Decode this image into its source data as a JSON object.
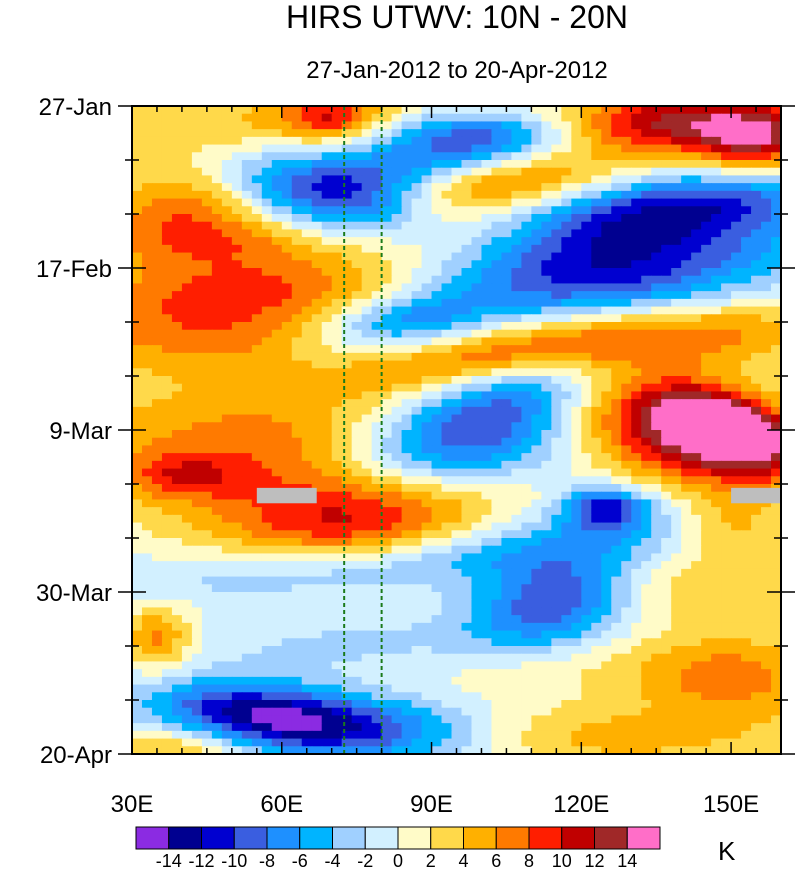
{
  "chart_data": {
    "type": "heatmap",
    "title": "HIRS UTWV: 10N - 20N",
    "subtitle": "27-Jan-2012 to 20-Apr-2012",
    "x_axis": {
      "range": [
        30,
        160
      ],
      "ticks": [
        30,
        60,
        90,
        120,
        150
      ],
      "tick_labels": [
        "30E",
        "60E",
        "90E",
        "120E",
        "150E"
      ]
    },
    "y_axis": {
      "range_days": [
        0,
        84
      ],
      "direction": "time increases downward",
      "ticks": [
        0,
        21,
        42,
        63,
        84
      ],
      "tick_labels": [
        "27-Jan",
        "17-Feb",
        "9-Mar",
        "30-Mar",
        "20-Apr"
      ]
    },
    "reference_lines_lon": [
      72.5,
      80
    ],
    "colorbar": {
      "unit": "K",
      "levels": [
        -14,
        -12,
        -10,
        -8,
        -6,
        -4,
        -2,
        0,
        2,
        4,
        6,
        8,
        10,
        12,
        14
      ],
      "level_labels": [
        "-14",
        "-12",
        "-10",
        "-8",
        "-6",
        "-4",
        "-2",
        "0",
        "2",
        "4",
        "6",
        "8",
        "10",
        "12",
        "14"
      ],
      "colors": [
        "#8b2be2",
        "#000090",
        "#0000d0",
        "#3a5ee0",
        "#1e90ff",
        "#00b4ff",
        "#a0d0ff",
        "#d2f0ff",
        "#fffbc8",
        "#ffd94a",
        "#ffb000",
        "#ff7a00",
        "#ff1e00",
        "#c00000",
        "#a02828",
        "#ff6ec8"
      ]
    },
    "missing_color": "#bebebe",
    "missing_boxes": [
      {
        "lon": [
          55,
          67
        ],
        "day": [
          49.5,
          51.5
        ]
      },
      {
        "lon": [
          150,
          160
        ],
        "day": [
          49.5,
          51.5
        ]
      }
    ],
    "anomaly_features": [
      {
        "lon": 60,
        "day": 2,
        "value": 4,
        "sx": 60,
        "sy": 3,
        "theta": 0
      },
      {
        "lon": 70,
        "day": 1.5,
        "value": 8,
        "sx": 7,
        "sy": 2,
        "theta": 0
      },
      {
        "lon": 100,
        "day": 5,
        "value": -9,
        "sx": 15,
        "sy": 3,
        "theta": -0.18
      },
      {
        "lon": 92,
        "day": 3,
        "value": -5,
        "sx": 15,
        "sy": 2,
        "theta": 0
      },
      {
        "lon": 140,
        "day": 2,
        "value": 11,
        "sx": 18,
        "sy": 3,
        "theta": 0
      },
      {
        "lon": 155,
        "day": 5,
        "value": 9,
        "sx": 8,
        "sy": 3,
        "theta": 0
      },
      {
        "lon": 100,
        "day": 10,
        "value": 7,
        "sx": 18,
        "sy": 2.5,
        "theta": -0.1
      },
      {
        "lon": 76,
        "day": 12,
        "value": -11,
        "sx": 12,
        "sy": 4,
        "theta": 0
      },
      {
        "lon": 60,
        "day": 10,
        "value": -5,
        "sx": 10,
        "sy": 3,
        "theta": 0.15
      },
      {
        "lon": 40,
        "day": 13,
        "value": 6,
        "sx": 12,
        "sy": 4,
        "theta": 0
      },
      {
        "lon": 138,
        "day": 13,
        "value": -9,
        "sx": 22,
        "sy": 3,
        "theta": -0.1
      },
      {
        "lon": 125,
        "day": 21,
        "value": -12,
        "sx": 26,
        "sy": 5,
        "theta": -0.15
      },
      {
        "lon": 85,
        "day": 17,
        "value": 4,
        "sx": 30,
        "sy": 4,
        "theta": -0.2
      },
      {
        "lon": 45,
        "day": 18,
        "value": 5,
        "sx": 20,
        "sy": 3,
        "theta": 0
      },
      {
        "lon": 60,
        "day": 24,
        "value": 4,
        "sx": 30,
        "sy": 2.5,
        "theta": 0
      },
      {
        "lon": 84,
        "day": 28,
        "value": -7,
        "sx": 12,
        "sy": 2.5,
        "theta": -0.15
      },
      {
        "lon": 45,
        "day": 29,
        "value": 7,
        "sx": 22,
        "sy": 4,
        "theta": 0
      },
      {
        "lon": 130,
        "day": 30,
        "value": 9,
        "sx": 28,
        "sy": 3,
        "theta": -0.05
      },
      {
        "lon": 110,
        "day": 37,
        "value": -7,
        "sx": 15,
        "sy": 3,
        "theta": -0.2
      },
      {
        "lon": 90,
        "day": 34,
        "value": 4,
        "sx": 18,
        "sy": 2,
        "theta": -0.15
      },
      {
        "lon": 95,
        "day": 44,
        "value": -11,
        "sx": 18,
        "sy": 4,
        "theta": -0.15
      },
      {
        "lon": 140,
        "day": 42,
        "value": 13,
        "sx": 18,
        "sy": 5,
        "theta": 0.25
      },
      {
        "lon": 150,
        "day": 42,
        "value": 12,
        "sx": 10,
        "sy": 3,
        "theta": 0.3
      },
      {
        "lon": 55,
        "day": 44,
        "value": 7,
        "sx": 30,
        "sy": 6,
        "theta": 0
      },
      {
        "lon": 40,
        "day": 48,
        "value": 5,
        "sx": 8,
        "sy": 2,
        "theta": 0
      },
      {
        "lon": 75,
        "day": 54,
        "value": 10,
        "sx": 20,
        "sy": 5,
        "theta": 0
      },
      {
        "lon": 115,
        "day": 56,
        "value": -5,
        "sx": 30,
        "sy": 3,
        "theta": -0.1
      },
      {
        "lon": 125,
        "day": 52,
        "value": -10,
        "sx": 6,
        "sy": 2,
        "theta": 0
      },
      {
        "lon": 150,
        "day": 54,
        "value": 5,
        "sx": 8,
        "sy": 3,
        "theta": 0
      },
      {
        "lon": 75,
        "day": 60,
        "value": -5,
        "sx": 30,
        "sy": 2.5,
        "theta": -0.05
      },
      {
        "lon": 115,
        "day": 64,
        "value": -11,
        "sx": 12,
        "sy": 4,
        "theta": -0.2
      },
      {
        "lon": 140,
        "day": 62,
        "value": 4,
        "sx": 20,
        "sy": 4,
        "theta": 0
      },
      {
        "lon": 35,
        "day": 69,
        "value": 7,
        "sx": 5,
        "sy": 3,
        "theta": 0
      },
      {
        "lon": 85,
        "day": 70,
        "value": -3,
        "sx": 30,
        "sy": 3,
        "theta": 0
      },
      {
        "lon": 150,
        "day": 74,
        "value": 7,
        "sx": 14,
        "sy": 4,
        "theta": 0
      },
      {
        "lon": 110,
        "day": 72,
        "value": 3,
        "sx": 20,
        "sy": 3,
        "theta": 0
      },
      {
        "lon": 55,
        "day": 79,
        "value": -12,
        "sx": 15,
        "sy": 3,
        "theta": 0.1
      },
      {
        "lon": 80,
        "day": 81,
        "value": -9,
        "sx": 18,
        "sy": 3,
        "theta": 0.05
      },
      {
        "lon": 40,
        "day": 83,
        "value": 5,
        "sx": 10,
        "sy": 2,
        "theta": 0
      },
      {
        "lon": 120,
        "day": 82,
        "value": 5,
        "sx": 30,
        "sy": 3,
        "theta": 0
      }
    ]
  }
}
